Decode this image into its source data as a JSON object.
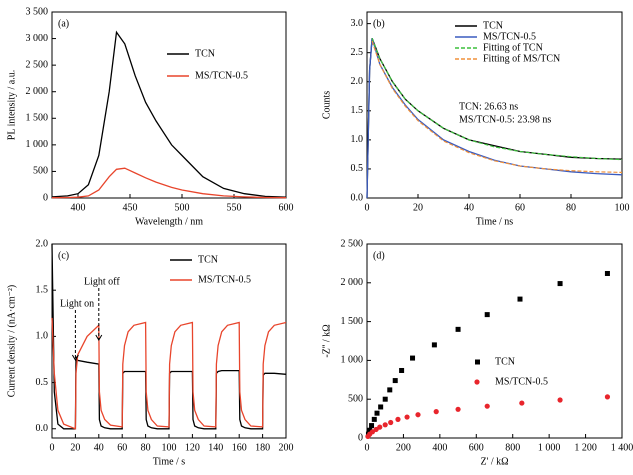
{
  "chart_data": [
    {
      "type": "line",
      "label": "(a)",
      "x_label": "Wavelength / nm",
      "y_label": "PL intensity / a.u.",
      "x": [
        375,
        390,
        400,
        410,
        420,
        430,
        437,
        445,
        455,
        465,
        475,
        490,
        500,
        520,
        540,
        560,
        580,
        600
      ],
      "series": [
        {
          "name": "TCN",
          "color": "#000000",
          "values": [
            20,
            40,
            80,
            250,
            800,
            2000,
            3120,
            2900,
            2300,
            1800,
            1450,
            1000,
            800,
            400,
            180,
            80,
            30,
            15
          ]
        },
        {
          "name": "MS/TCN-0.5",
          "color": "#e8452c",
          "values": [
            5,
            10,
            15,
            40,
            150,
            400,
            540,
            560,
            470,
            380,
            300,
            200,
            150,
            80,
            40,
            20,
            10,
            5
          ]
        }
      ],
      "xlim": [
        375,
        600
      ],
      "xticks": [
        400,
        450,
        500,
        550,
        600
      ],
      "ylim": [
        0,
        3500
      ],
      "yticks": [
        0,
        500,
        {
          "value": 1000,
          "label": "1 000"
        },
        {
          "value": 1500,
          "label": "1 500"
        },
        {
          "value": 2000,
          "label": "2 000"
        },
        {
          "value": 2500,
          "label": "2 500"
        },
        {
          "value": 3000,
          "label": "3 000"
        },
        {
          "value": 3500,
          "label": "3 500"
        }
      ],
      "legend": "upper right"
    },
    {
      "type": "line",
      "label": "(b)",
      "x_label": "Time / ns",
      "y_label": "Counts",
      "x": [
        0,
        1,
        2,
        5,
        10,
        15,
        20,
        30,
        40,
        50,
        60,
        70,
        80,
        90,
        100
      ],
      "series": [
        {
          "name": "TCN",
          "color": "#000000",
          "values": [
            0,
            2.2,
            2.75,
            2.4,
            2.0,
            1.7,
            1.5,
            1.2,
            1.0,
            0.9,
            0.8,
            0.75,
            0.7,
            0.68,
            0.67
          ]
        },
        {
          "name": "MS/TCN-0.5",
          "color": "#3a5bbf",
          "values": [
            0,
            2.2,
            2.75,
            2.3,
            1.9,
            1.6,
            1.35,
            1.0,
            0.8,
            0.65,
            0.55,
            0.5,
            0.45,
            0.42,
            0.4
          ]
        },
        {
          "name": "Fitting of TCN",
          "color": "#3cbf3c",
          "dashed": true,
          "values": [
            null,
            null,
            2.75,
            2.4,
            2.0,
            1.7,
            1.5,
            1.2,
            1.0,
            0.88,
            0.8,
            0.75,
            0.71,
            0.68,
            0.66
          ]
        },
        {
          "name": "Fitting of MS/TCN",
          "color": "#f0903a",
          "dashed": true,
          "values": [
            null,
            null,
            2.7,
            2.3,
            1.88,
            1.58,
            1.33,
            0.98,
            0.78,
            0.64,
            0.55,
            0.5,
            0.47,
            0.45,
            0.44
          ]
        }
      ],
      "annotations": [
        "TCN: 26.63 ns",
        "MS/TCN-0.5: 23.98 ns"
      ],
      "annotation_color": "#e8552d",
      "xlim": [
        0,
        100
      ],
      "xticks": [
        0,
        20,
        40,
        60,
        80,
        100
      ],
      "ylim": [
        0,
        3.2
      ],
      "yticks": [
        {
          "value": 0,
          "label": "0.0"
        },
        0.5,
        {
          "value": 1,
          "label": "1.0"
        },
        1.5,
        {
          "value": 2,
          "label": "2.0"
        },
        2.5,
        {
          "value": 3,
          "label": "3.0"
        }
      ],
      "legend": "upper right"
    },
    {
      "type": "line",
      "label": "(c)",
      "x_label": "Time / s",
      "y_label": "Current density / (nA·cm⁻²)",
      "x": [
        0,
        2,
        5,
        10,
        20,
        20.5,
        22,
        30,
        40,
        40.5,
        42,
        45,
        50,
        60,
        60.5,
        62,
        65,
        70,
        80,
        80.5,
        82,
        85,
        90,
        100,
        100.5,
        102,
        105,
        110,
        120,
        120.5,
        122,
        125,
        130,
        140,
        140.5,
        142,
        145,
        150,
        160,
        160.5,
        162,
        165,
        170,
        180,
        180.5,
        182,
        185,
        190,
        200
      ],
      "series": [
        {
          "name": "TCN",
          "color": "#000000",
          "values": [
            2.0,
            0.4,
            0.05,
            0.0,
            0.0,
            0.78,
            0.74,
            0.72,
            0.7,
            0.1,
            0.03,
            0.01,
            0.0,
            0.0,
            0.6,
            0.62,
            0.62,
            0.62,
            0.62,
            0.1,
            0.03,
            0.01,
            0.0,
            0.0,
            0.6,
            0.62,
            0.62,
            0.62,
            0.62,
            0.1,
            0.03,
            0.01,
            0.0,
            0.0,
            0.6,
            0.62,
            0.63,
            0.63,
            0.63,
            0.1,
            0.03,
            0.01,
            0.0,
            0.0,
            0.58,
            0.6,
            0.6,
            0.6,
            0.59
          ]
        },
        {
          "name": "MS/TCN-0.5",
          "color": "#e8452c",
          "values": [
            1.2,
            0.6,
            0.2,
            0.05,
            0.0,
            0.6,
            0.8,
            1.0,
            1.12,
            0.4,
            0.2,
            0.1,
            0.04,
            0.02,
            0.7,
            0.9,
            1.05,
            1.12,
            1.15,
            0.4,
            0.2,
            0.1,
            0.03,
            0.02,
            0.7,
            0.9,
            1.05,
            1.12,
            1.15,
            0.4,
            0.2,
            0.1,
            0.03,
            0.02,
            0.7,
            0.9,
            1.05,
            1.12,
            1.15,
            0.4,
            0.2,
            0.1,
            0.03,
            0.02,
            0.7,
            0.9,
            1.05,
            1.12,
            1.15
          ]
        }
      ],
      "annotations": [
        "Light on",
        "Light off"
      ],
      "xlim": [
        0,
        200
      ],
      "xticks": [
        0,
        20,
        40,
        60,
        80,
        100,
        120,
        140,
        160,
        180,
        200
      ],
      "ylim": [
        -0.1,
        2.0
      ],
      "yticks": [
        {
          "value": 0,
          "label": "0.0"
        },
        0.5,
        {
          "value": 1,
          "label": "1.0"
        },
        1.5,
        {
          "value": 2,
          "label": "2.0"
        }
      ],
      "legend": "upper right"
    },
    {
      "type": "scatter",
      "label": "(d)",
      "x_label": "Z' / kΩ",
      "y_label": "-Z'' / kΩ",
      "series": [
        {
          "name": "TCN",
          "color": "#000000",
          "marker": "square",
          "x": [
            8,
            15,
            25,
            40,
            55,
            75,
            100,
            125,
            155,
            190,
            250,
            370,
            500,
            660,
            840,
            1060,
            1320
          ],
          "values": [
            50,
            100,
            160,
            240,
            320,
            400,
            500,
            620,
            740,
            870,
            1030,
            1200,
            1400,
            1590,
            1790,
            1990,
            2120
          ]
        },
        {
          "name": "MS/TCN-0.5",
          "color": "#e8252c",
          "marker": "circle",
          "x": [
            5,
            15,
            30,
            50,
            70,
            100,
            130,
            170,
            220,
            280,
            380,
            500,
            660,
            850,
            1060,
            1320
          ],
          "values": [
            20,
            50,
            80,
            110,
            140,
            170,
            200,
            240,
            270,
            300,
            340,
            370,
            410,
            450,
            490,
            530
          ]
        }
      ],
      "xlim": [
        0,
        1400
      ],
      "xticks": [
        0,
        200,
        400,
        600,
        800,
        {
          "value": 1000,
          "label": "1 000"
        },
        {
          "value": 1200,
          "label": "1 200"
        },
        {
          "value": 1400,
          "label": "1 400"
        }
      ],
      "ylim": [
        0,
        2500
      ],
      "yticks": [
        0,
        500,
        {
          "value": 1000,
          "label": "1 000"
        },
        {
          "value": 1500,
          "label": "1 500"
        },
        {
          "value": 2000,
          "label": "2 000"
        },
        {
          "value": 2500,
          "label": "2 500"
        }
      ],
      "legend": "center right"
    }
  ]
}
